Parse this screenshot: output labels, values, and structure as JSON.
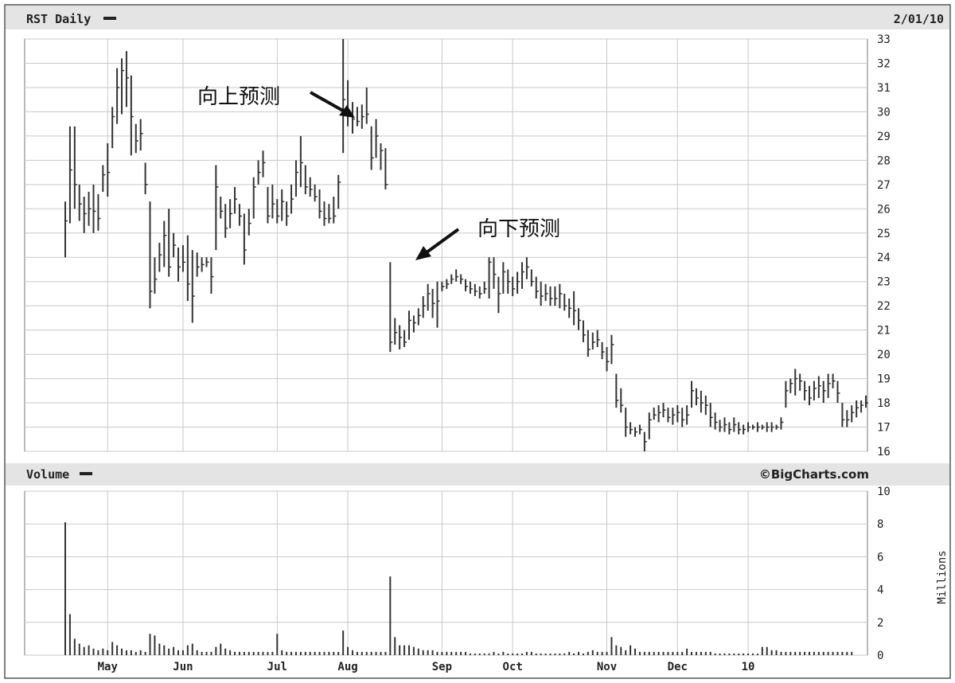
{
  "header": {
    "symbol_label": "RST Daily",
    "date_label": "2/01/10",
    "volume_label": "Volume",
    "source_label": "©BigCharts.com",
    "volume_unit_label": "Millions"
  },
  "annotations": [
    {
      "text": "向上预测",
      "points_to_index": 61
    },
    {
      "text": "向下预测",
      "points_to_index": 70
    }
  ],
  "chart_data": [
    {
      "type": "ohlc-bar",
      "title": "RST Daily",
      "x_tick_labels": [
        "May",
        "Jun",
        "Jul",
        "Aug",
        "Sep",
        "Oct",
        "Nov",
        "Dec",
        "10"
      ],
      "x_tick_indices": [
        9,
        25,
        45,
        60,
        80,
        95,
        115,
        130,
        145
      ],
      "ylim": [
        16,
        33
      ],
      "y_ticks": [
        16,
        17,
        18,
        19,
        20,
        21,
        22,
        23,
        24,
        25,
        26,
        27,
        28,
        29,
        30,
        31,
        32,
        33
      ],
      "grid": true,
      "bars": [
        [
          24.0,
          26.3,
          25.5
        ],
        [
          25.4,
          29.4,
          27.6
        ],
        [
          26.0,
          29.4,
          27.0
        ],
        [
          25.5,
          27.0,
          26.2
        ],
        [
          25.0,
          26.5,
          25.8
        ],
        [
          25.3,
          26.7,
          26.0
        ],
        [
          25.0,
          27.0,
          25.9
        ],
        [
          25.1,
          26.6,
          25.6
        ],
        [
          26.7,
          27.8,
          27.4
        ],
        [
          26.5,
          28.7,
          27.5
        ],
        [
          28.5,
          30.2,
          29.8
        ],
        [
          29.5,
          31.8,
          31.0
        ],
        [
          29.9,
          32.2,
          31.7
        ],
        [
          30.2,
          32.5,
          31.4
        ],
        [
          28.2,
          31.5,
          29.8
        ],
        [
          28.3,
          29.5,
          28.8
        ],
        [
          28.4,
          29.7,
          29.1
        ],
        [
          26.6,
          27.9,
          27.0
        ],
        [
          21.9,
          26.3,
          22.6
        ],
        [
          22.5,
          24.0,
          23.1
        ],
        [
          23.4,
          24.6,
          24.1
        ],
        [
          23.6,
          25.5,
          24.9
        ],
        [
          23.2,
          26.0,
          23.6
        ],
        [
          24.0,
          25.0,
          24.5
        ],
        [
          23.0,
          24.4,
          23.6
        ],
        [
          23.4,
          24.5,
          23.8
        ],
        [
          22.2,
          24.9,
          22.9
        ],
        [
          21.3,
          24.3,
          22.4
        ],
        [
          23.2,
          24.2,
          23.6
        ],
        [
          23.4,
          24.0,
          23.7
        ],
        [
          23.6,
          24.0,
          23.8
        ],
        [
          22.5,
          24.0,
          23.2
        ],
        [
          24.3,
          27.8,
          26.9
        ],
        [
          25.6,
          26.5,
          25.9
        ],
        [
          24.8,
          26.2,
          25.2
        ],
        [
          25.2,
          26.4,
          25.8
        ],
        [
          25.8,
          26.9,
          26.4
        ],
        [
          25.3,
          26.2,
          25.7
        ],
        [
          23.7,
          25.8,
          24.3
        ],
        [
          24.9,
          26.0,
          25.4
        ],
        [
          25.6,
          27.3,
          26.9
        ],
        [
          27.0,
          28.0,
          27.5
        ],
        [
          27.3,
          28.4,
          27.9
        ],
        [
          25.4,
          26.9,
          25.7
        ],
        [
          25.6,
          27.0,
          26.2
        ],
        [
          25.4,
          26.4,
          25.7
        ],
        [
          25.5,
          26.8,
          26.3
        ],
        [
          25.3,
          26.3,
          25.7
        ],
        [
          25.8,
          27.0,
          26.4
        ],
        [
          26.5,
          28.0,
          27.5
        ],
        [
          26.9,
          29.0,
          27.9
        ],
        [
          26.6,
          27.8,
          26.9
        ],
        [
          26.5,
          27.3,
          26.8
        ],
        [
          26.3,
          27.0,
          26.5
        ],
        [
          25.6,
          26.8,
          25.9
        ],
        [
          25.3,
          26.3,
          25.6
        ],
        [
          25.4,
          26.2,
          25.6
        ],
        [
          25.4,
          26.5,
          25.7
        ],
        [
          26.0,
          27.4,
          27.1
        ],
        [
          28.3,
          33.0,
          30.5
        ],
        [
          29.4,
          31.3,
          30.0
        ],
        [
          29.1,
          30.4,
          29.7
        ],
        [
          29.4,
          30.2,
          29.6
        ],
        [
          29.3,
          30.3,
          29.8
        ],
        [
          29.5,
          31.0,
          29.9
        ],
        [
          27.6,
          29.4,
          28.1
        ],
        [
          28.1,
          29.7,
          29.0
        ],
        [
          27.6,
          28.7,
          28.4
        ],
        [
          26.8,
          28.5,
          27.0
        ],
        [
          20.1,
          23.8,
          20.5
        ],
        [
          20.4,
          21.5,
          20.9
        ],
        [
          20.2,
          21.2,
          20.7
        ],
        [
          20.3,
          21.0,
          20.5
        ],
        [
          20.6,
          21.8,
          21.4
        ],
        [
          20.9,
          21.6,
          21.3
        ],
        [
          21.2,
          21.9,
          21.6
        ],
        [
          21.5,
          22.4,
          22.0
        ],
        [
          21.8,
          22.9,
          22.5
        ],
        [
          21.5,
          22.7,
          22.1
        ],
        [
          21.1,
          23.0,
          22.2
        ],
        [
          22.6,
          23.0,
          22.8
        ],
        [
          22.7,
          23.1,
          22.9
        ],
        [
          22.9,
          23.3,
          23.1
        ],
        [
          23.0,
          23.5,
          23.2
        ],
        [
          22.9,
          23.3,
          23.1
        ],
        [
          22.6,
          23.1,
          22.8
        ],
        [
          22.5,
          23.0,
          22.7
        ],
        [
          22.4,
          22.9,
          22.6
        ],
        [
          22.3,
          22.8,
          22.5
        ],
        [
          22.5,
          23.0,
          22.7
        ],
        [
          22.3,
          24.0,
          23.8
        ],
        [
          22.7,
          24.0,
          23.3
        ],
        [
          21.7,
          23.2,
          22.5
        ],
        [
          22.5,
          23.8,
          23.4
        ],
        [
          22.5,
          23.5,
          23.0
        ],
        [
          22.4,
          23.2,
          22.7
        ],
        [
          22.5,
          23.4,
          23.0
        ],
        [
          22.7,
          23.8,
          23.4
        ],
        [
          23.1,
          24.0,
          23.6
        ],
        [
          22.8,
          23.5,
          23.0
        ],
        [
          22.3,
          23.2,
          22.6
        ],
        [
          22.0,
          23.0,
          22.4
        ],
        [
          22.2,
          22.9,
          22.5
        ],
        [
          22.0,
          22.8,
          22.3
        ],
        [
          22.0,
          22.8,
          22.3
        ],
        [
          21.9,
          22.9,
          22.5
        ],
        [
          21.8,
          22.5,
          22.0
        ],
        [
          21.5,
          22.3,
          21.9
        ],
        [
          21.2,
          22.6,
          21.8
        ],
        [
          21.0,
          21.9,
          21.4
        ],
        [
          20.5,
          21.4,
          20.8
        ],
        [
          19.9,
          21.0,
          20.2
        ],
        [
          20.2,
          20.9,
          20.5
        ],
        [
          20.3,
          21.0,
          20.6
        ],
        [
          19.8,
          20.5,
          20.1
        ],
        [
          19.3,
          20.3,
          19.7
        ],
        [
          19.6,
          20.8,
          20.4
        ],
        [
          17.8,
          19.2,
          18.1
        ],
        [
          17.6,
          18.6,
          17.9
        ],
        [
          16.6,
          17.8,
          17.0
        ],
        [
          16.7,
          17.2,
          16.9
        ],
        [
          16.6,
          17.0,
          16.8
        ],
        [
          16.7,
          17.1,
          16.9
        ],
        [
          16.0,
          16.8,
          16.4
        ],
        [
          16.5,
          17.6,
          17.3
        ],
        [
          17.3,
          17.8,
          17.5
        ],
        [
          17.2,
          17.9,
          17.6
        ],
        [
          17.4,
          18.0,
          17.7
        ],
        [
          17.2,
          17.8,
          17.4
        ],
        [
          17.1,
          17.8,
          17.5
        ],
        [
          17.2,
          17.9,
          17.6
        ],
        [
          17.0,
          17.8,
          17.3
        ],
        [
          17.1,
          17.9,
          17.5
        ],
        [
          17.8,
          18.9,
          18.5
        ],
        [
          17.9,
          18.6,
          18.2
        ],
        [
          17.6,
          18.5,
          18.0
        ],
        [
          17.5,
          18.3,
          17.9
        ],
        [
          17.0,
          18.0,
          17.4
        ],
        [
          16.9,
          17.6,
          17.2
        ],
        [
          16.8,
          17.3,
          17.0
        ],
        [
          16.8,
          17.4,
          17.1
        ],
        [
          16.7,
          17.2,
          16.9
        ],
        [
          16.8,
          17.4,
          17.1
        ],
        [
          16.7,
          17.2,
          16.9
        ],
        [
          16.7,
          17.1,
          16.9
        ],
        [
          16.8,
          17.2,
          17.0
        ],
        [
          16.9,
          17.1,
          17.0
        ],
        [
          16.8,
          17.2,
          17.0
        ],
        [
          16.9,
          17.1,
          17.0
        ],
        [
          16.8,
          17.2,
          17.0
        ],
        [
          16.8,
          17.2,
          17.0
        ],
        [
          16.9,
          17.1,
          17.0
        ],
        [
          16.9,
          17.4,
          17.2
        ],
        [
          17.8,
          18.9,
          18.5
        ],
        [
          18.4,
          19.0,
          18.8
        ],
        [
          18.3,
          19.4,
          19.0
        ],
        [
          18.5,
          19.2,
          18.9
        ],
        [
          18.1,
          18.9,
          18.5
        ],
        [
          17.9,
          18.7,
          18.2
        ],
        [
          18.1,
          18.9,
          18.6
        ],
        [
          18.2,
          19.1,
          18.7
        ],
        [
          18.0,
          18.9,
          18.5
        ],
        [
          18.2,
          19.2,
          18.8
        ],
        [
          18.6,
          19.2,
          18.9
        ],
        [
          18.0,
          18.9,
          18.4
        ],
        [
          17.0,
          18.0,
          17.3
        ],
        [
          17.0,
          17.7,
          17.3
        ],
        [
          17.2,
          17.9,
          17.6
        ],
        [
          17.4,
          18.1,
          17.8
        ],
        [
          17.6,
          18.1,
          17.9
        ],
        [
          17.8,
          18.3,
          18.0
        ]
      ]
    },
    {
      "type": "bar",
      "title": "Volume",
      "ylabel": "Millions",
      "ylim": [
        0,
        10
      ],
      "y_ticks": [
        0,
        2,
        4,
        6,
        8,
        10
      ],
      "grid": true,
      "values": [
        8.1,
        2.5,
        1.0,
        0.7,
        0.5,
        0.6,
        0.4,
        0.3,
        0.4,
        0.3,
        0.8,
        0.6,
        0.4,
        0.3,
        0.3,
        0.2,
        0.3,
        0.2,
        1.3,
        1.2,
        0.7,
        0.6,
        0.4,
        0.5,
        0.3,
        0.3,
        0.6,
        0.7,
        0.3,
        0.2,
        0.2,
        0.2,
        0.5,
        0.7,
        0.4,
        0.3,
        0.2,
        0.2,
        0.2,
        0.2,
        0.2,
        0.2,
        0.2,
        0.2,
        0.2,
        1.3,
        0.3,
        0.2,
        0.2,
        0.2,
        0.2,
        0.2,
        0.2,
        0.2,
        0.2,
        0.2,
        0.2,
        0.2,
        0.2,
        1.5,
        0.5,
        0.3,
        0.2,
        0.2,
        0.2,
        0.2,
        0.2,
        0.2,
        0.2,
        4.8,
        1.1,
        0.6,
        0.6,
        0.6,
        0.5,
        0.4,
        0.3,
        0.3,
        0.3,
        0.2,
        0.2,
        0.2,
        0.2,
        0.2,
        0.2,
        0.2,
        0.1,
        0.1,
        0.1,
        0.1,
        0.1,
        0.2,
        0.1,
        0.2,
        0.1,
        0.1,
        0.1,
        0.1,
        0.2,
        0.2,
        0.1,
        0.1,
        0.1,
        0.1,
        0.1,
        0.1,
        0.1,
        0.2,
        0.1,
        0.2,
        0.1,
        0.2,
        0.3,
        0.2,
        0.2,
        0.2,
        1.1,
        0.6,
        0.5,
        0.3,
        0.6,
        0.4,
        0.2,
        0.2,
        0.2,
        0.2,
        0.2,
        0.2,
        0.2,
        0.2,
        0.2,
        0.2,
        0.4,
        0.2,
        0.2,
        0.2,
        0.2,
        0.2,
        0.1,
        0.1,
        0.1,
        0.1,
        0.1,
        0.1,
        0.1,
        0.1,
        0.1,
        0.1,
        0.5,
        0.5,
        0.3,
        0.3,
        0.2,
        0.2,
        0.2,
        0.2,
        0.2,
        0.2,
        0.2,
        0.2,
        0.2,
        0.2,
        0.2,
        0.2,
        0.2,
        0.2,
        0.2,
        0.2
      ]
    }
  ]
}
